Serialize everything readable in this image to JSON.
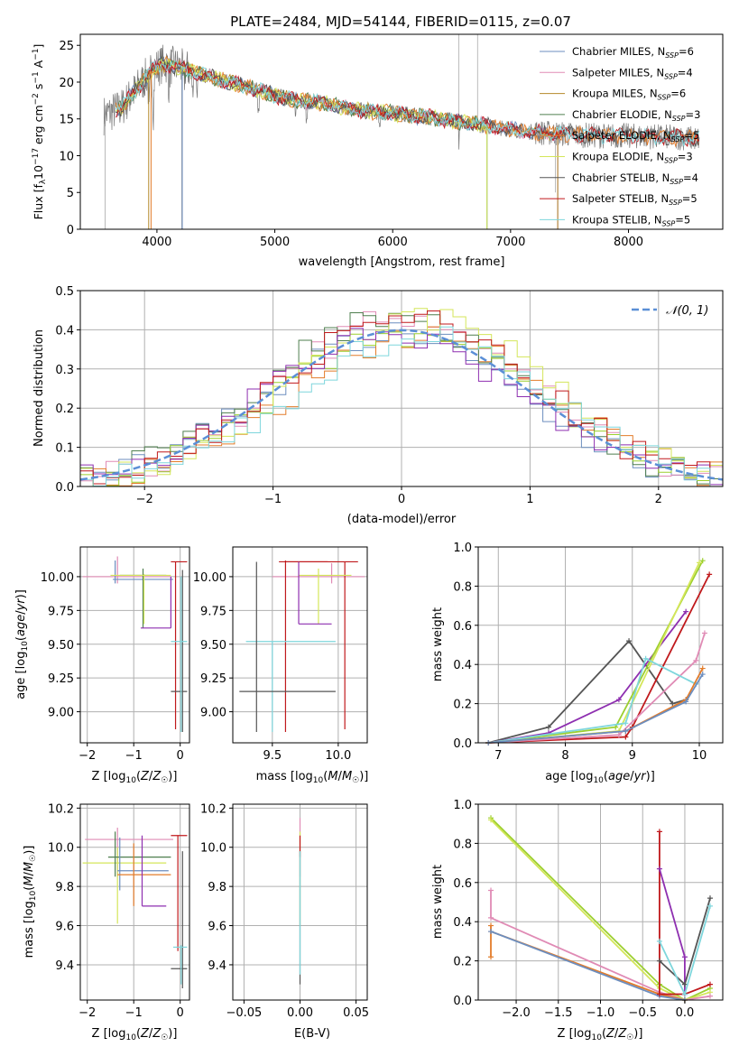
{
  "figure_title": "PLATE=2484, MJD=54144, FIBERID=0115, z=0.07",
  "colors": {
    "Chabrier MILES": "#6c8ebf",
    "Salpeter MILES": "#e08bb5",
    "Kroupa MILES": "#b5892a",
    "Chabrier ELODIE": "#4f7f4f",
    "Salpeter ELODIE": "#e37c2a",
    "Kroupa ELODIE": "#d4e65a",
    "Chabrier STELIB": "#555555",
    "Salpeter STELIB": "#c0191c",
    "Kroupa STELIB": "#7ed6dc",
    "purple": "#8e2fb0",
    "lime": "#9ccf2f",
    "gray_obs": "#777777",
    "gaussian": "#5b8fd6",
    "grid": "#b0b0b0"
  },
  "chart_data": [
    {
      "id": "spectrum",
      "type": "line",
      "title": "PLATE=2484, MJD=54144, FIBERID=0115, z=0.07",
      "xlabel": "wavelength [Angstrom, rest frame]",
      "ylabel": "Flux [f_λ 10^-17 erg cm^-2 s^-1 A^-1]",
      "xlim": [
        3350,
        8800
      ],
      "ylim": [
        0,
        26.5
      ],
      "xticks": [
        4000,
        5000,
        6000,
        7000,
        8000
      ],
      "yticks": [
        0,
        5,
        10,
        15,
        20,
        25
      ],
      "legend_position": "top-right",
      "legend": [
        {
          "label": "Chabrier MILES",
          "nssp": "6"
        },
        {
          "label": "Salpeter MILES",
          "nssp": "4"
        },
        {
          "label": "Kroupa MILES",
          "nssp": "6"
        },
        {
          "label": "Chabrier ELODIE",
          "nssp": "3"
        },
        {
          "label": "Salpeter ELODIE",
          "nssp": "5"
        },
        {
          "label": "Kroupa ELODIE",
          "nssp": "3"
        },
        {
          "label": "Chabrier STELIB",
          "nssp": "4"
        },
        {
          "label": "Salpeter STELIB",
          "nssp": "5"
        },
        {
          "label": "Kroupa STELIB",
          "nssp": "5"
        }
      ],
      "continuum": {
        "x": [
          3550,
          3700,
          3850,
          3950,
          4050,
          4200,
          4400,
          4600,
          4800,
          5000,
          5200,
          5400,
          5600,
          5800,
          6000,
          6200,
          6400,
          6600,
          6800,
          7000,
          7200,
          7400,
          7600,
          7800,
          8000,
          8200,
          8400,
          8600
        ],
        "y": [
          15.5,
          16.5,
          19.5,
          21.5,
          22.5,
          22.0,
          21.0,
          20.0,
          19.2,
          18.2,
          17.5,
          17.2,
          16.5,
          16.0,
          15.8,
          15.4,
          15.0,
          14.6,
          14.0,
          13.6,
          13.2,
          13.0,
          12.8,
          12.7,
          12.7,
          12.6,
          12.5,
          12.3
        ]
      }
    },
    {
      "id": "residuals",
      "type": "bar",
      "xlabel": "(data-model)/error",
      "ylabel": "Normed distribution",
      "xlim": [
        -2.5,
        2.5
      ],
      "ylim": [
        0,
        0.5
      ],
      "xticks": [
        -2,
        -1,
        0,
        1,
        2
      ],
      "yticks": [
        0.0,
        0.1,
        0.2,
        0.3,
        0.4,
        0.5
      ],
      "legend": "$\\mathcal{N}(0,1)$",
      "legend_text": "𝒩(0, 1)",
      "legend_position": "top-right"
    },
    {
      "id": "Z_age",
      "type": "scatter",
      "xlabel": "Z [log10(Z/Z☉)]",
      "ylabel": "age  [log10(age/yr)]",
      "xlim": [
        -2.15,
        0.2
      ],
      "ylim": [
        8.77,
        10.22
      ],
      "xticks": [
        -2,
        -1,
        0
      ],
      "yticks": [
        9.0,
        9.25,
        9.5,
        9.75,
        10.0
      ]
    },
    {
      "id": "mass_age",
      "type": "scatter",
      "xlabel": "mass [log10(M/M☉)]",
      "ylabel": "",
      "xlim": [
        9.2,
        10.22
      ],
      "ylim": [
        8.77,
        10.22
      ],
      "xticks": [
        9.5,
        10.0
      ],
      "yticks": [
        9.0,
        9.25,
        9.5,
        9.75,
        10.0
      ]
    },
    {
      "id": "age_weight",
      "type": "line",
      "xlabel": "age  [log10(age/yr)]",
      "ylabel": "mass weight",
      "xlim": [
        6.7,
        10.35
      ],
      "ylim": [
        0,
        1.0
      ],
      "xticks": [
        7,
        8,
        9,
        10
      ],
      "yticks": [
        0.0,
        0.2,
        0.4,
        0.6,
        0.8,
        1.0
      ]
    },
    {
      "id": "Z_mass",
      "type": "scatter",
      "xlabel": "Z [log10(Z/Z☉)]",
      "ylabel": "mass [log10(M/M☉)]",
      "xlim": [
        -2.15,
        0.2
      ],
      "ylim": [
        9.22,
        10.22
      ],
      "xticks": [
        -2,
        -1,
        0
      ],
      "yticks": [
        9.4,
        9.6,
        9.8,
        10.0,
        10.2
      ]
    },
    {
      "id": "ebv_mass",
      "type": "scatter",
      "xlabel": "E(B-V)",
      "ylabel": "",
      "xlim": [
        -0.06,
        0.06
      ],
      "ylim": [
        9.22,
        10.22
      ],
      "xticks": [
        -0.05,
        0.0,
        0.05
      ],
      "yticks": [
        9.4,
        9.6,
        9.8,
        10.0,
        10.2
      ]
    },
    {
      "id": "Z_weight",
      "type": "line",
      "xlabel": "Z [log10(Z/Z☉)]",
      "ylabel": "mass weight",
      "xlim": [
        -2.45,
        0.45
      ],
      "ylim": [
        0,
        1.0
      ],
      "xticks": [
        -2.0,
        -1.5,
        -1.0,
        -0.5,
        0.0
      ],
      "yticks": [
        0.0,
        0.2,
        0.4,
        0.6,
        0.8,
        1.0
      ]
    }
  ],
  "tick_text": {
    "spectrum_x": [
      "4000",
      "5000",
      "6000",
      "7000",
      "8000"
    ],
    "spectrum_y": [
      "0",
      "5",
      "10",
      "15",
      "20",
      "25"
    ],
    "residuals_x": [
      "−2",
      "−1",
      "0",
      "1",
      "2"
    ],
    "residuals_y": [
      "0.0",
      "0.1",
      "0.2",
      "0.3",
      "0.4",
      "0.5"
    ],
    "Z_age_x": [
      "−2",
      "−1",
      "0"
    ],
    "age_y": [
      "9.00",
      "9.25",
      "9.50",
      "9.75",
      "10.00"
    ],
    "mass_age_x": [
      "9.5",
      "10.0"
    ],
    "age_weight_x": [
      "7",
      "8",
      "9",
      "10"
    ],
    "weight_y": [
      "0.0",
      "0.2",
      "0.4",
      "0.6",
      "0.8",
      "1.0"
    ],
    "Z_mass_x": [
      "−2",
      "−1",
      "0"
    ],
    "mass_y": [
      "9.4",
      "9.6",
      "9.8",
      "10.0",
      "10.2"
    ],
    "ebv_x": [
      "−0.05",
      "0.00",
      "0.05"
    ],
    "Z_weight_x": [
      "−2.0",
      "−1.5",
      "−1.0",
      "−0.5",
      "0.0"
    ]
  },
  "labels": {
    "spectrum_x": "wavelength [Angstrom, rest frame]",
    "spectrum_y": "Flux [f",
    "residuals_x": "(data-model)/error",
    "residuals_y": "Normed distribution",
    "Z_x": "Z [log",
    "age_y": "age  [log",
    "mass_x": "mass [log",
    "mass_y": "mass [log",
    "weight_y": "mass weight",
    "age_x": "age  [log",
    "ebv_x": "E(B-V)"
  }
}
